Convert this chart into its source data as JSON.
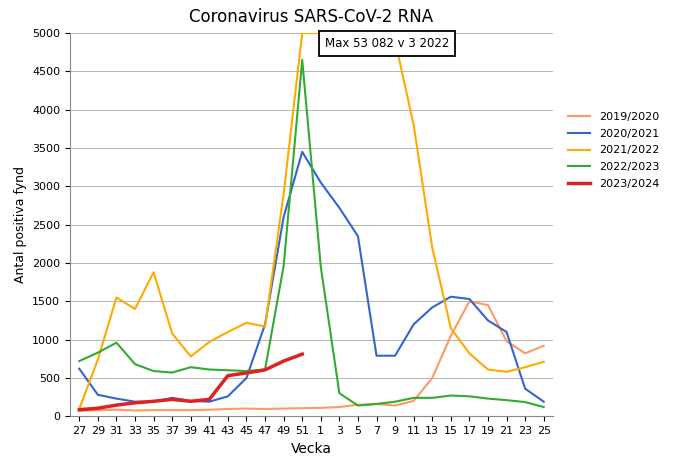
{
  "title": "Coronavirus SARS-CoV-2 RNA",
  "xlabel": "Vecka",
  "ylabel": "Antal positiva fynd",
  "annotation": "Max 53 082 v 3 2022",
  "ylim": [
    0,
    5000
  ],
  "yticks": [
    0,
    500,
    1000,
    1500,
    2000,
    2500,
    3000,
    3500,
    4000,
    4500,
    5000
  ],
  "x_labels": [
    "27",
    "29",
    "31",
    "33",
    "35",
    "37",
    "39",
    "41",
    "43",
    "45",
    "47",
    "49",
    "51",
    "1",
    "3",
    "5",
    "7",
    "9",
    "11",
    "13",
    "15",
    "17",
    "19",
    "21",
    "23",
    "25"
  ],
  "series": {
    "2019/2020": {
      "color": "#FF9966",
      "linewidth": 1.5,
      "values": [
        70,
        80,
        85,
        75,
        80,
        80,
        80,
        85,
        95,
        100,
        95,
        100,
        105,
        110,
        120,
        150,
        160,
        140,
        200,
        500,
        1050,
        1500,
        1450,
        980,
        820,
        920
      ]
    },
    "2020/2021": {
      "color": "#3366CC",
      "linewidth": 1.5,
      "values": [
        620,
        280,
        230,
        190,
        190,
        240,
        200,
        190,
        260,
        500,
        1200,
        2600,
        3450,
        3050,
        2720,
        2350,
        790,
        790,
        1200,
        1420,
        1560,
        1530,
        1250,
        1100,
        360,
        190
      ]
    },
    "2021/2022": {
      "color": "#FFAA00",
      "linewidth": 1.5,
      "values": [
        95,
        740,
        1550,
        1400,
        1880,
        1080,
        780,
        970,
        1100,
        1220,
        1170,
        2900,
        5000,
        5000,
        5000,
        5000,
        5000,
        4900,
        3800,
        2200,
        1150,
        820,
        610,
        580,
        640,
        710
      ]
    },
    "2022/2023": {
      "color": "#33AA33",
      "linewidth": 1.5,
      "values": [
        720,
        830,
        960,
        680,
        590,
        570,
        640,
        610,
        600,
        590,
        610,
        1960,
        4650,
        1950,
        300,
        140,
        160,
        190,
        240,
        240,
        270,
        260,
        230,
        210,
        185,
        120
      ]
    },
    "2023/2024": {
      "color": "#DD2222",
      "linewidth": 2.5,
      "values": [
        85,
        105,
        145,
        175,
        195,
        220,
        195,
        220,
        530,
        565,
        605,
        720,
        810,
        null,
        null,
        null,
        null,
        null,
        null,
        null,
        null,
        null,
        null,
        null,
        null,
        null
      ]
    }
  }
}
